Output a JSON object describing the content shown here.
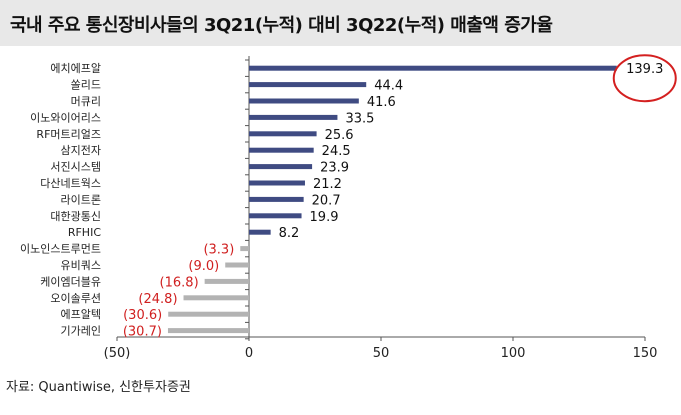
{
  "header": {
    "title": "국내 주요 통신장비사들의 3Q21(누적) 대비 3Q22(누적) 매출액 증가율"
  },
  "source": "자료: Quantiwise, 신한투자증권",
  "colors": {
    "positive_bar": "#3f4b82",
    "negative_bar": "#b3b3b3",
    "negative_label": "#d02020",
    "highlight_circle": "#d42020"
  },
  "chart_data": {
    "type": "bar",
    "orientation": "horizontal",
    "categories": [
      "에치에프알",
      "쏠리드",
      "머큐리",
      "이노와이어리스",
      "RF머트리얼즈",
      "삼지전자",
      "서진시스템",
      "다산네트웍스",
      "라이트론",
      "대한광통신",
      "RFHIC",
      "이노인스트루먼트",
      "유비쿼스",
      "케이엠더블유",
      "오이솔루션",
      "에프알텍",
      "기가레인"
    ],
    "values": [
      139.3,
      44.4,
      41.6,
      33.5,
      25.6,
      24.5,
      23.9,
      21.2,
      20.7,
      19.9,
      8.2,
      -3.3,
      -9.0,
      -16.8,
      -24.8,
      -30.6,
      -30.7
    ],
    "value_labels": [
      "139.3",
      "44.4",
      "41.6",
      "33.5",
      "25.6",
      "24.5",
      "23.9",
      "21.2",
      "20.7",
      "19.9",
      "8.2",
      "(3.3)",
      "(9.0)",
      "(16.8)",
      "(24.8)",
      "(30.6)",
      "(30.7)"
    ],
    "xlim": [
      -50,
      150
    ],
    "xticks": [
      -50,
      0,
      50,
      100,
      150
    ],
    "xtick_labels": [
      "(50)",
      "0",
      "50",
      "100",
      "150"
    ],
    "highlighted": "에치에프알",
    "grid": false,
    "legend": "none"
  }
}
